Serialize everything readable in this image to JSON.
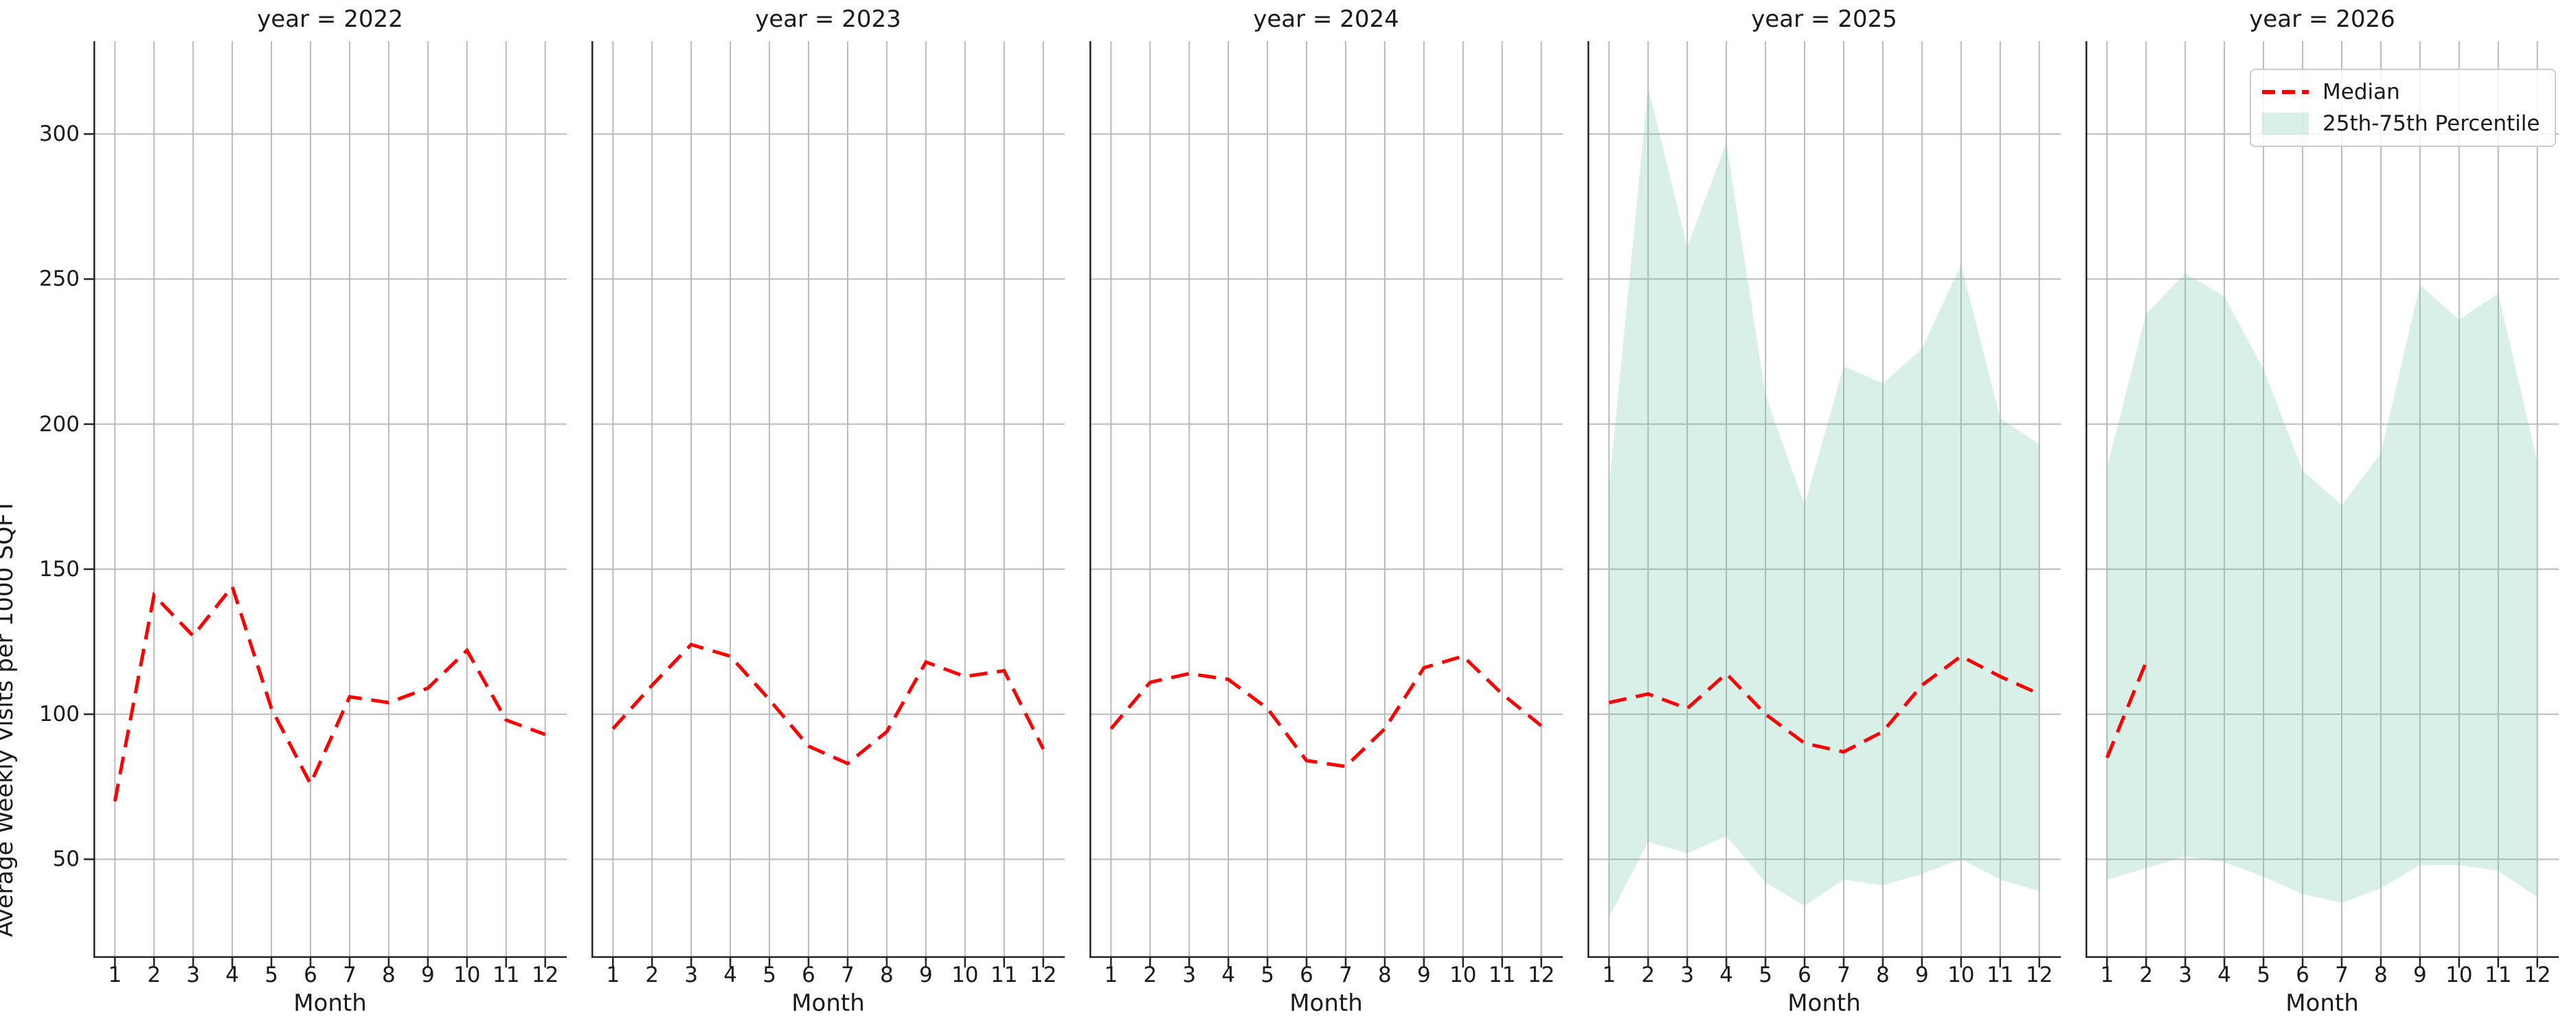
{
  "figure": {
    "background": "#ffffff",
    "ylabel": "Average Weekly Visits per 1000 SQFT",
    "xlabel": "Month",
    "yticks": [
      50,
      100,
      150,
      200,
      250,
      300
    ],
    "xticks": [
      1,
      2,
      3,
      4,
      5,
      6,
      7,
      8,
      9,
      10,
      11,
      12
    ],
    "ylim": [
      16,
      332
    ],
    "grid": true,
    "colors": {
      "median_line": "#ff0000",
      "band_fill": "rgba(102, 194, 165, 0.25)",
      "gridline": "#bababa",
      "spine": "#262626",
      "text": "#1a1a1a",
      "legend_border": "#cccccc"
    }
  },
  "legend": {
    "position": "upper right of last panel",
    "items": [
      {
        "label": "Median",
        "type": "dashed-line",
        "color": "#ff0000"
      },
      {
        "label": "25th-75th Percentile",
        "type": "filled-patch",
        "color": "rgba(102, 194, 165, 0.25)"
      }
    ]
  },
  "chart_data": [
    {
      "type": "line",
      "title": "year = 2022",
      "facet": {
        "variable": "year",
        "value": 2022
      },
      "x": [
        1,
        2,
        3,
        4,
        5,
        6,
        7,
        8,
        9,
        10,
        11,
        12
      ],
      "xlabel": "Month",
      "ylabel": "Average Weekly Visits per 1000 SQFT",
      "ylim": [
        16,
        332
      ],
      "yticks": [
        50,
        100,
        150,
        200,
        250,
        300
      ],
      "grid": true,
      "series": [
        {
          "name": "Median",
          "style": "dashed",
          "color": "#ff0000",
          "values": [
            70,
            141,
            127,
            144,
            102,
            76,
            106,
            104,
            109,
            122,
            98,
            93
          ]
        }
      ],
      "band": null
    },
    {
      "type": "line",
      "title": "year = 2023",
      "facet": {
        "variable": "year",
        "value": 2023
      },
      "x": [
        1,
        2,
        3,
        4,
        5,
        6,
        7,
        8,
        9,
        10,
        11,
        12
      ],
      "xlabel": "Month",
      "ylabel": "Average Weekly Visits per 1000 SQFT",
      "ylim": [
        16,
        332
      ],
      "yticks": [
        50,
        100,
        150,
        200,
        250,
        300
      ],
      "grid": true,
      "series": [
        {
          "name": "Median",
          "style": "dashed",
          "color": "#ff0000",
          "values": [
            95,
            110,
            124,
            120,
            105,
            89,
            83,
            94,
            118,
            113,
            115,
            88
          ]
        }
      ],
      "band": null
    },
    {
      "type": "line",
      "title": "year = 2024",
      "facet": {
        "variable": "year",
        "value": 2024
      },
      "x": [
        1,
        2,
        3,
        4,
        5,
        6,
        7,
        8,
        9,
        10,
        11,
        12
      ],
      "xlabel": "Month",
      "ylabel": "Average Weekly Visits per 1000 SQFT",
      "ylim": [
        16,
        332
      ],
      "yticks": [
        50,
        100,
        150,
        200,
        250,
        300
      ],
      "grid": true,
      "series": [
        {
          "name": "Median",
          "style": "dashed",
          "color": "#ff0000",
          "values": [
            95,
            111,
            114,
            112,
            102,
            84,
            82,
            95,
            116,
            120,
            107,
            96
          ]
        }
      ],
      "band": null
    },
    {
      "type": "line",
      "title": "year = 2025",
      "facet": {
        "variable": "year",
        "value": 2025
      },
      "x": [
        1,
        2,
        3,
        4,
        5,
        6,
        7,
        8,
        9,
        10,
        11,
        12
      ],
      "xlabel": "Month",
      "ylabel": "Average Weekly Visits per 1000 SQFT",
      "ylim": [
        16,
        332
      ],
      "yticks": [
        50,
        100,
        150,
        200,
        250,
        300
      ],
      "grid": true,
      "series": [
        {
          "name": "Median",
          "style": "dashed",
          "color": "#ff0000",
          "values": [
            104,
            107,
            102,
            114,
            100,
            90,
            87,
            94,
            110,
            120,
            113,
            107
          ]
        }
      ],
      "band": {
        "name": "25th-75th Percentile",
        "upper": [
          178,
          316,
          261,
          297,
          210,
          172,
          220,
          214,
          226,
          255,
          202,
          193
        ],
        "lower": [
          30,
          56,
          52,
          58,
          42,
          34,
          43,
          41,
          45,
          50,
          43,
          39
        ]
      }
    },
    {
      "type": "line",
      "title": "year = 2026",
      "facet": {
        "variable": "year",
        "value": 2026
      },
      "x": [
        1,
        2,
        3,
        4,
        5,
        6,
        7,
        8,
        9,
        10,
        11,
        12
      ],
      "xlabel": "Month",
      "ylabel": "Average Weekly Visits per 1000 SQFT",
      "ylim": [
        16,
        332
      ],
      "yticks": [
        50,
        100,
        150,
        200,
        250,
        300
      ],
      "grid": true,
      "series": [
        {
          "name": "Median",
          "style": "dashed",
          "color": "#ff0000",
          "values": [
            85,
            118,
            null,
            null,
            null,
            null,
            null,
            null,
            null,
            null,
            null,
            null
          ]
        }
      ],
      "band": {
        "name": "25th-75th Percentile",
        "upper": [
          185,
          238,
          252,
          244,
          219,
          184,
          172,
          190,
          248,
          236,
          245,
          187
        ],
        "lower": [
          43,
          47,
          51,
          49,
          44,
          38,
          35,
          40,
          48,
          48,
          46,
          37
        ]
      }
    }
  ]
}
